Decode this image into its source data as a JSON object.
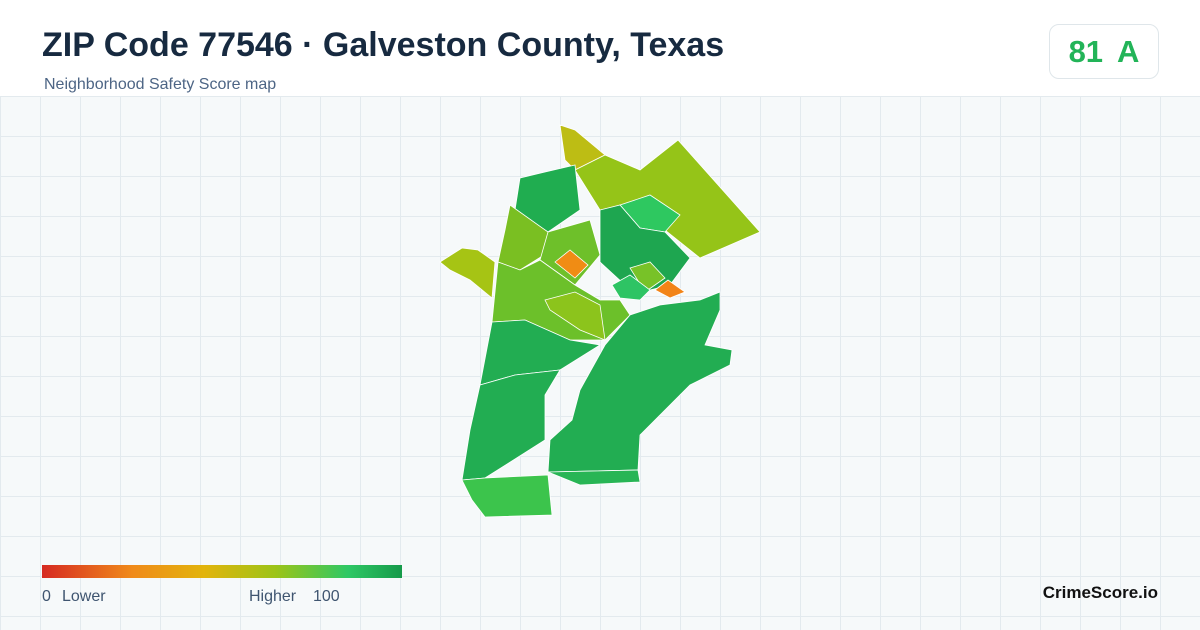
{
  "header": {
    "title": "ZIP Code 77546 · Galveston County, Texas",
    "subtitle": "Neighborhood Safety Score map"
  },
  "score": {
    "value": 81,
    "grade": "A"
  },
  "legend": {
    "min": 0,
    "min_label": "Lower",
    "max_label": "Higher",
    "max": 100
  },
  "brand": "CrimeScore.io"
}
